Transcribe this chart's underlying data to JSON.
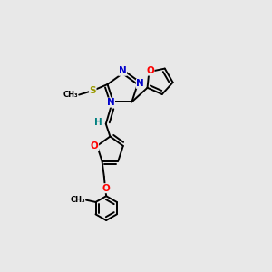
{
  "bg_color": "#e8e8e8",
  "atom_colors": {
    "N": "#0000cc",
    "O": "#ff0000",
    "S": "#999900",
    "H": "#008080"
  },
  "bond_color": "#000000",
  "bond_width": 1.4,
  "dbo": 0.015,
  "figsize": [
    3.0,
    3.0
  ],
  "dpi": 100
}
